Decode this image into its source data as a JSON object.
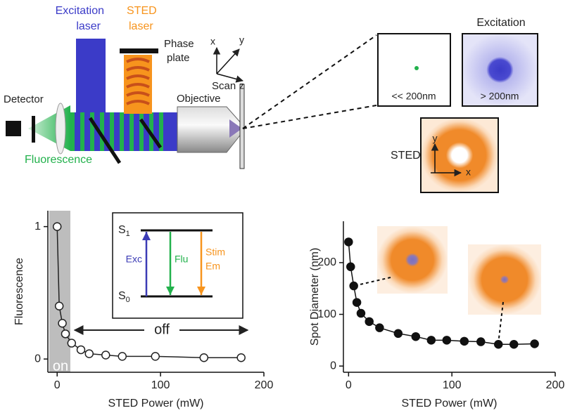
{
  "diagram": {
    "excitation_laser": [
      "Excitation",
      "laser"
    ],
    "sted_laser": [
      "STED",
      "laser"
    ],
    "phase_plate": [
      "Phase",
      "plate"
    ],
    "detector": "Detector",
    "fluorescence": "Fluorescence",
    "objective": "Objective",
    "scan": {
      "label": "Scan",
      "x": "x",
      "y": "y",
      "z": "z"
    },
    "panels": {
      "small": "<< 200nm",
      "large": "> 200nm",
      "excitation": "Excitation",
      "sted": "STED",
      "sted_x": "x",
      "sted_y": "y"
    }
  },
  "chart_data": [
    {
      "type": "line",
      "xlabel": "STED Power (mW)",
      "ylabel": "Fluorescence",
      "x": [
        0,
        2,
        5,
        8,
        14,
        23,
        31,
        47,
        63,
        95,
        142,
        178
      ],
      "values": [
        1.0,
        0.4,
        0.27,
        0.19,
        0.12,
        0.07,
        0.04,
        0.03,
        0.02,
        0.02,
        0.01,
        0.01
      ],
      "color": "#222222",
      "marker": "open",
      "xlim": [
        -9,
        200
      ],
      "ylim": [
        -0.1,
        1.12
      ],
      "xticks": [
        0,
        100,
        200
      ],
      "yticks": [
        0,
        1
      ],
      "annotations": {
        "on": "on",
        "off": "off"
      },
      "inset": {
        "levels": [
          {
            "symbol": "S",
            "index": "1"
          },
          {
            "symbol": "S",
            "index": "0"
          }
        ],
        "arrows": [
          {
            "label": [
              "Exc"
            ],
            "color": "#3b3bb5"
          },
          {
            "label": [
              "Flu"
            ],
            "color": "#22b14c"
          },
          {
            "label": [
              "Stim",
              "Em"
            ],
            "color": "#f7941d"
          }
        ]
      }
    },
    {
      "type": "scatter",
      "xlabel": "STED Power (mW)",
      "ylabel": "Spot Diameter (nm)",
      "x": [
        0,
        2,
        5,
        8,
        12,
        20,
        30,
        48,
        65,
        80,
        95,
        112,
        128,
        145,
        160,
        180
      ],
      "values": [
        240,
        192,
        155,
        123,
        102,
        86,
        74,
        63,
        57,
        50,
        50,
        48,
        47,
        42,
        42,
        43
      ],
      "color": "#111111",
      "marker": "filled",
      "xlim": [
        -5,
        200
      ],
      "ylim": [
        -12,
        280
      ],
      "xticks": [
        0,
        100,
        200
      ],
      "yticks": [
        0,
        100,
        200
      ]
    }
  ]
}
